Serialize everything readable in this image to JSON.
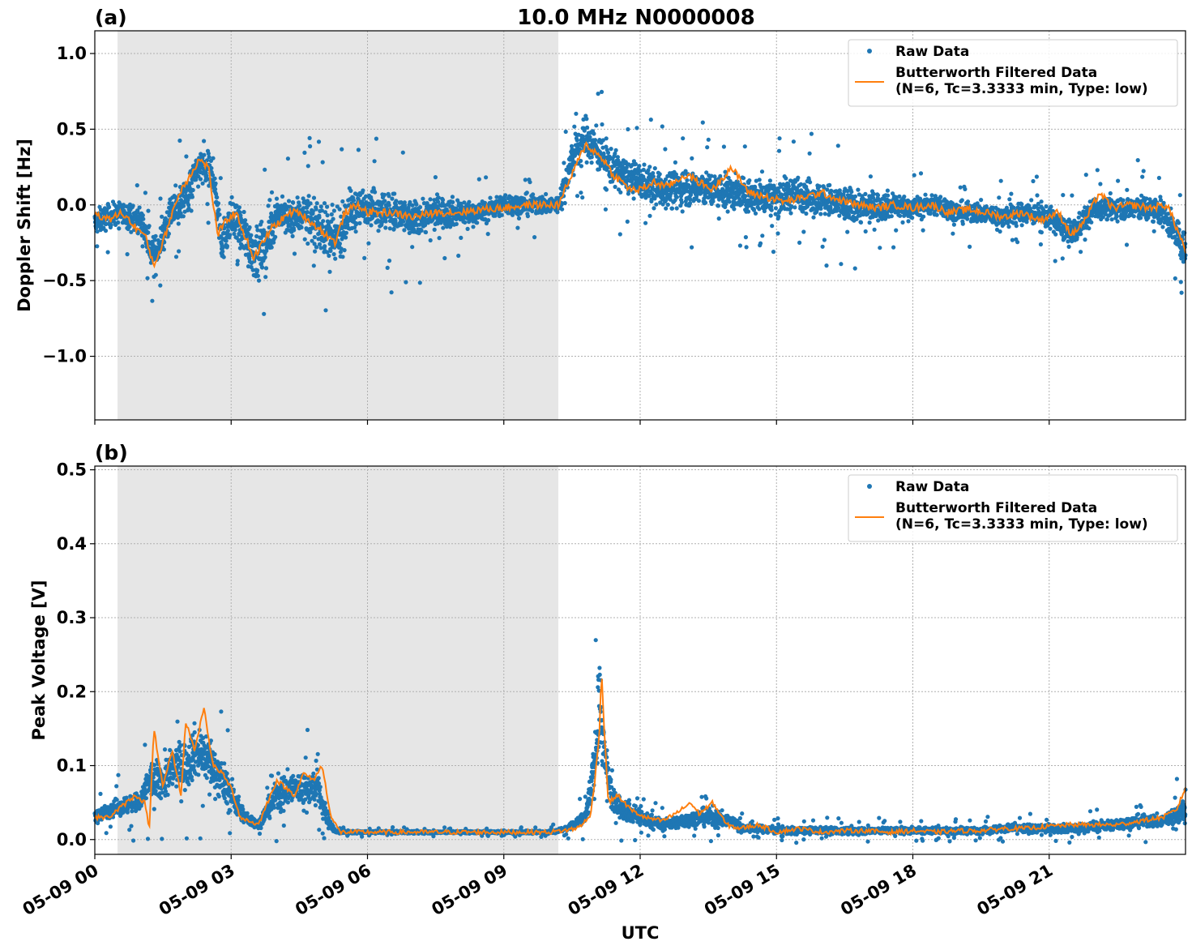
{
  "chart_data": [
    {
      "type": "scatter",
      "panel_label": "(a)",
      "title": "10.0 MHz N0000008",
      "ylabel": "Doppler Shift [Hz]",
      "ylim": [
        -1.42,
        1.15
      ],
      "xlim_hours": [
        0,
        24
      ],
      "yticks": [
        -1.0,
        -0.5,
        0.0,
        0.5,
        1.0
      ],
      "ytick_labels": [
        "−1.0",
        "−0.5",
        "0.0",
        "0.5",
        "1.0"
      ],
      "night_shading_hours": [
        0.5,
        10.2
      ],
      "grid": true,
      "legend_position": "upper right",
      "legend": {
        "raw": "Raw Data",
        "filtered_line1": "Butterworth Filtered Data",
        "filtered_line2": "(N=6, Tc=3.3333 min, Type: low)"
      },
      "series": [
        {
          "name": "Raw Data",
          "color": "#1f77b4",
          "style": "points",
          "x_hours": [
            0,
            0.5,
            1,
            1.3,
            1.7,
            2,
            2.3,
            2.6,
            2.8,
            3,
            3.3,
            3.6,
            3.8,
            4,
            4.3,
            4.6,
            5,
            5.3,
            5.6,
            6,
            6.5,
            7,
            7.5,
            8,
            8.5,
            9,
            9.5,
            10,
            10.2,
            10.5,
            10.8,
            11.2,
            11.6,
            12,
            12.5,
            13,
            13.5,
            14,
            14.5,
            15,
            15.5,
            16,
            16.5,
            17,
            17.5,
            18,
            18.5,
            19,
            19.5,
            20,
            20.5,
            21,
            21.5,
            22,
            22.5,
            23,
            23.5,
            24
          ],
          "y_center": [
            -0.12,
            -0.05,
            -0.1,
            -0.35,
            -0.05,
            0.05,
            0.25,
            0.2,
            -0.25,
            -0.1,
            -0.2,
            -0.35,
            -0.25,
            -0.05,
            -0.1,
            -0.05,
            -0.15,
            -0.25,
            -0.05,
            0.0,
            -0.05,
            -0.1,
            -0.05,
            -0.05,
            -0.05,
            0.0,
            0.0,
            0.0,
            0.0,
            0.3,
            0.45,
            0.3,
            0.2,
            0.15,
            0.1,
            0.12,
            0.1,
            0.08,
            0.05,
            0.05,
            0.08,
            0.03,
            0.0,
            -0.02,
            0.0,
            -0.02,
            0.0,
            -0.05,
            -0.05,
            -0.08,
            -0.05,
            -0.08,
            -0.2,
            -0.02,
            -0.02,
            -0.02,
            -0.05,
            -0.3
          ],
          "y_spread": [
            0.15,
            0.12,
            0.15,
            0.2,
            0.2,
            0.2,
            0.2,
            0.2,
            0.25,
            0.2,
            0.3,
            0.3,
            0.3,
            0.2,
            0.2,
            0.25,
            0.3,
            0.3,
            0.25,
            0.2,
            0.25,
            0.2,
            0.2,
            0.15,
            0.12,
            0.12,
            0.12,
            0.1,
            0.12,
            0.2,
            0.25,
            0.2,
            0.2,
            0.2,
            0.2,
            0.22,
            0.2,
            0.2,
            0.2,
            0.2,
            0.2,
            0.2,
            0.2,
            0.18,
            0.15,
            0.12,
            0.12,
            0.12,
            0.12,
            0.12,
            0.12,
            0.12,
            0.15,
            0.12,
            0.12,
            0.15,
            0.15,
            0.2
          ]
        },
        {
          "name": "Butterworth Filtered Data",
          "color": "#ff7f0e",
          "style": "line",
          "x_hours": [
            0,
            0.3,
            0.6,
            0.9,
            1.1,
            1.3,
            1.5,
            1.7,
            1.9,
            2.1,
            2.3,
            2.5,
            2.7,
            2.9,
            3.1,
            3.3,
            3.5,
            3.7,
            3.9,
            4.1,
            4.3,
            4.5,
            4.7,
            4.9,
            5.1,
            5.3,
            5.5,
            5.8,
            6,
            6.5,
            7,
            7.5,
            8,
            8.5,
            9,
            9.5,
            10,
            10.2,
            10.5,
            10.8,
            11,
            11.2,
            11.4,
            11.6,
            11.8,
            12,
            12.3,
            12.6,
            13,
            13.3,
            13.6,
            14,
            14.4,
            14.8,
            15.2,
            15.6,
            16,
            16.4,
            16.8,
            17.2,
            17.6,
            18,
            18.4,
            18.8,
            19.2,
            19.6,
            20,
            20.4,
            20.8,
            21.2,
            21.5,
            21.8,
            22.1,
            22.4,
            22.8,
            23.2,
            23.6,
            24
          ],
          "y": [
            -0.05,
            -0.1,
            -0.05,
            -0.15,
            -0.2,
            -0.4,
            -0.25,
            -0.05,
            0.1,
            0.2,
            0.3,
            0.25,
            -0.2,
            -0.1,
            -0.05,
            -0.2,
            -0.35,
            -0.25,
            -0.15,
            -0.1,
            -0.05,
            -0.05,
            -0.1,
            -0.15,
            -0.2,
            -0.25,
            -0.05,
            0.0,
            -0.05,
            -0.05,
            -0.08,
            -0.05,
            -0.05,
            -0.03,
            -0.02,
            0.0,
            0.0,
            0.0,
            0.2,
            0.4,
            0.35,
            0.3,
            0.2,
            0.15,
            0.1,
            0.1,
            0.15,
            0.12,
            0.2,
            0.15,
            0.1,
            0.25,
            0.08,
            0.05,
            0.02,
            0.05,
            0.08,
            0.03,
            0.0,
            -0.02,
            0.0,
            -0.02,
            0.0,
            -0.05,
            -0.03,
            -0.05,
            -0.08,
            -0.05,
            -0.1,
            -0.05,
            -0.2,
            -0.1,
            0.08,
            -0.02,
            0.0,
            -0.02,
            0.0,
            -0.3
          ]
        }
      ]
    },
    {
      "type": "scatter",
      "panel_label": "(b)",
      "ylabel": "Peak Voltage [V]",
      "xlabel": "UTC",
      "ylim": [
        -0.02,
        0.505
      ],
      "xlim_hours": [
        0,
        24
      ],
      "yticks": [
        0.0,
        0.1,
        0.2,
        0.3,
        0.4,
        0.5
      ],
      "ytick_labels": [
        "0.0",
        "0.1",
        "0.2",
        "0.3",
        "0.4",
        "0.5"
      ],
      "xticks_hours": [
        0,
        3,
        6,
        9,
        12,
        15,
        18,
        21
      ],
      "xtick_labels": [
        "05-09 00",
        "05-09 03",
        "05-09 06",
        "05-09 09",
        "05-09 12",
        "05-09 15",
        "05-09 18",
        "05-09 21"
      ],
      "night_shading_hours": [
        0.5,
        10.2
      ],
      "grid": true,
      "legend_position": "upper right",
      "legend": {
        "raw": "Raw Data",
        "filtered_line1": "Butterworth Filtered Data",
        "filtered_line2": "(N=6, Tc=3.3333 min, Type: low)"
      },
      "series": [
        {
          "name": "Raw Data",
          "color": "#1f77b4",
          "style": "points",
          "x_hours": [
            0,
            0.5,
            1,
            1.2,
            1.5,
            1.8,
            2,
            2.2,
            2.5,
            2.8,
            3,
            3.3,
            3.6,
            4,
            4.3,
            4.6,
            4.9,
            5.1,
            5.3,
            6,
            7,
            8,
            9,
            10,
            10.4,
            10.8,
            11,
            11.1,
            11.2,
            11.4,
            11.7,
            12,
            12.5,
            13,
            13.3,
            13.6,
            14,
            14.3,
            14.6,
            15,
            15.5,
            16,
            16.5,
            17,
            17.5,
            18,
            18.5,
            19,
            19.5,
            20,
            20.5,
            21,
            21.5,
            22,
            22.5,
            23,
            23.5,
            24
          ],
          "y_center": [
            0.03,
            0.045,
            0.05,
            0.08,
            0.08,
            0.1,
            0.1,
            0.12,
            0.11,
            0.08,
            0.06,
            0.03,
            0.02,
            0.06,
            0.07,
            0.07,
            0.07,
            0.03,
            0.01,
            0.01,
            0.01,
            0.01,
            0.01,
            0.01,
            0.015,
            0.03,
            0.1,
            0.2,
            0.12,
            0.05,
            0.04,
            0.03,
            0.02,
            0.025,
            0.03,
            0.03,
            0.025,
            0.015,
            0.015,
            0.012,
            0.012,
            0.012,
            0.012,
            0.012,
            0.012,
            0.012,
            0.012,
            0.012,
            0.012,
            0.015,
            0.015,
            0.015,
            0.015,
            0.018,
            0.02,
            0.025,
            0.025,
            0.04
          ],
          "y_spread": [
            0.015,
            0.02,
            0.025,
            0.04,
            0.05,
            0.05,
            0.06,
            0.06,
            0.06,
            0.05,
            0.04,
            0.015,
            0.01,
            0.035,
            0.04,
            0.04,
            0.04,
            0.02,
            0.003,
            0.003,
            0.003,
            0.003,
            0.003,
            0.004,
            0.006,
            0.02,
            0.06,
            0.12,
            0.06,
            0.03,
            0.025,
            0.02,
            0.012,
            0.015,
            0.02,
            0.02,
            0.015,
            0.008,
            0.008,
            0.008,
            0.008,
            0.008,
            0.008,
            0.008,
            0.008,
            0.008,
            0.008,
            0.008,
            0.008,
            0.01,
            0.01,
            0.01,
            0.01,
            0.012,
            0.012,
            0.015,
            0.015,
            0.03
          ]
        },
        {
          "name": "Butterworth Filtered Data",
          "color": "#ff7f0e",
          "style": "line",
          "x_hours": [
            0,
            0.3,
            0.6,
            0.9,
            1.1,
            1.2,
            1.3,
            1.5,
            1.7,
            1.9,
            2.0,
            2.2,
            2.4,
            2.6,
            2.8,
            3.0,
            3.2,
            3.4,
            3.6,
            3.8,
            4.0,
            4.2,
            4.4,
            4.6,
            4.8,
            5.0,
            5.2,
            5.4,
            6,
            7,
            8,
            9,
            10,
            10.3,
            10.6,
            10.9,
            11.0,
            11.1,
            11.15,
            11.2,
            11.3,
            11.5,
            11.8,
            12.1,
            12.5,
            12.9,
            13.1,
            13.3,
            13.6,
            13.9,
            14.2,
            14.6,
            15,
            15.5,
            16,
            16.5,
            17,
            17.5,
            18,
            18.5,
            19,
            19.5,
            20,
            20.5,
            21,
            21.5,
            22,
            22.5,
            23,
            23.5,
            23.8,
            24
          ],
          "y": [
            0.03,
            0.03,
            0.045,
            0.06,
            0.05,
            0.015,
            0.15,
            0.07,
            0.12,
            0.06,
            0.16,
            0.12,
            0.18,
            0.1,
            0.09,
            0.07,
            0.03,
            0.025,
            0.02,
            0.05,
            0.08,
            0.07,
            0.06,
            0.09,
            0.08,
            0.1,
            0.03,
            0.01,
            0.01,
            0.01,
            0.01,
            0.01,
            0.01,
            0.012,
            0.015,
            0.03,
            0.08,
            0.14,
            0.23,
            0.16,
            0.05,
            0.06,
            0.04,
            0.03,
            0.025,
            0.04,
            0.05,
            0.035,
            0.05,
            0.02,
            0.015,
            0.02,
            0.01,
            0.015,
            0.01,
            0.012,
            0.012,
            0.01,
            0.012,
            0.01,
            0.012,
            0.012,
            0.015,
            0.015,
            0.018,
            0.02,
            0.02,
            0.02,
            0.025,
            0.03,
            0.04,
            0.07
          ]
        }
      ]
    }
  ]
}
